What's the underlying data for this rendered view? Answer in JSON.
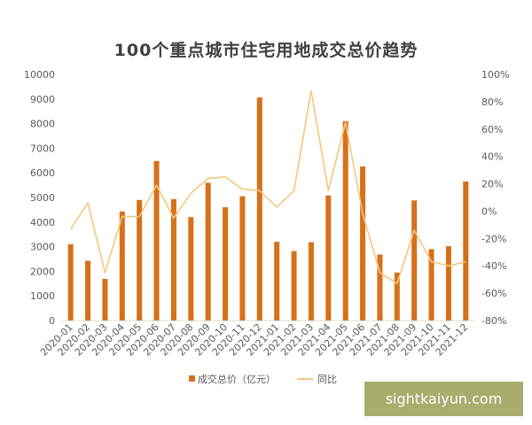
{
  "chart_data": {
    "type": "bar",
    "title": "100个重点城市住宅用地成交总价趋势",
    "categories": [
      "2020-01",
      "2020-02",
      "2020-03",
      "2020-04",
      "2020-05",
      "2020-06",
      "2020-07",
      "2020-08",
      "2020-09",
      "2020-10",
      "2020-11",
      "2020-12",
      "2021-01",
      "2021-02",
      "2021-03",
      "2021-04",
      "2021-05",
      "2021-06",
      "2021-07",
      "2021-08",
      "2021-09",
      "2021-10",
      "2021-11",
      "2021-12"
    ],
    "series": [
      {
        "name": "成交总价（亿元）",
        "type": "bar",
        "axis": "left",
        "color": "#d7701a",
        "values": [
          3100,
          2430,
          1690,
          4430,
          4900,
          6480,
          4930,
          4200,
          5600,
          4600,
          5050,
          9060,
          3200,
          2820,
          3180,
          5080,
          8100,
          6260,
          2680,
          1950,
          4880,
          2900,
          3020,
          5650
        ]
      },
      {
        "name": "同比",
        "type": "line",
        "axis": "right",
        "color": "#f5c77e",
        "values": [
          -13,
          6,
          -45,
          -4,
          -4,
          19,
          -5,
          13,
          24,
          25,
          16,
          15,
          3,
          15,
          88,
          15,
          65,
          -2,
          -45,
          -53,
          -14,
          -37,
          -40,
          -37
        ]
      }
    ],
    "ylim": [
      0,
      10000
    ],
    "y_ticks": [
      "0",
      "1000",
      "2000",
      "3000",
      "4000",
      "5000",
      "6000",
      "7000",
      "8000",
      "9000",
      "10000"
    ],
    "y2lim": [
      -80,
      100
    ],
    "y2_ticks": [
      "-80%",
      "-60%",
      "-40%",
      "-20%",
      "0%",
      "20%",
      "40%",
      "60%",
      "80%",
      "100%"
    ],
    "xlabel": "",
    "ylabel": "",
    "grid": false,
    "legend_position": "bottom"
  },
  "watermark": "sightkaiyun.com"
}
